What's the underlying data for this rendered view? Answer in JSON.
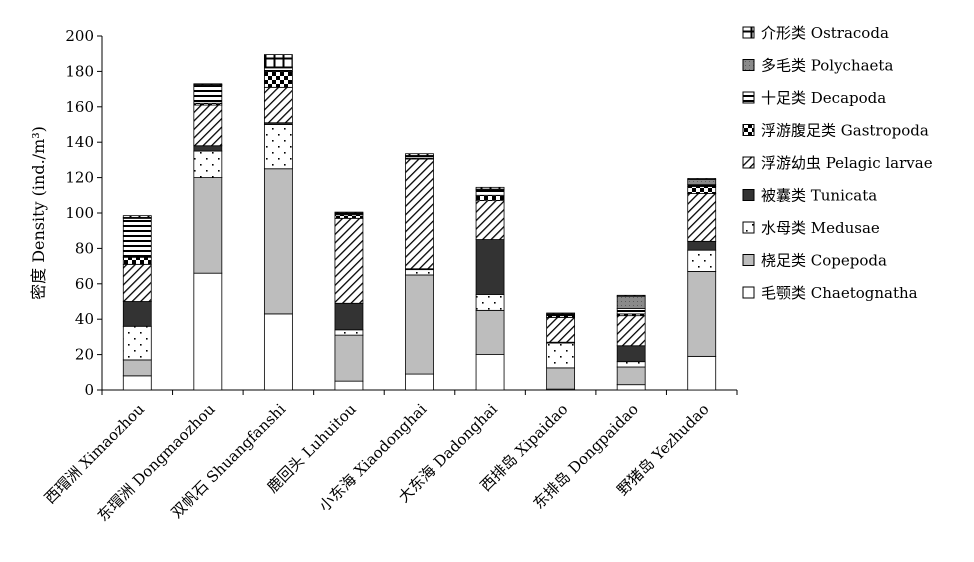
{
  "chart_data": {
    "type": "bar",
    "stacked": true,
    "title": "",
    "xlabel": "",
    "ylabel": "密度 Density (ind./m³)",
    "ylim": [
      0,
      200
    ],
    "yticks": [
      0,
      20,
      40,
      60,
      80,
      100,
      120,
      140,
      160,
      180,
      200
    ],
    "grid": false,
    "legend_position": "right",
    "categories": [
      "西瑁洲 Ximaozhou",
      "东瑁洲 Dongmaozhou",
      "双帆石 Shuangfanshi",
      "鹿回头 Luhuitou",
      "小东海 Xiaodonghai",
      "大东海 Dadonghai",
      "西排岛 Xipaidao",
      "东排岛 Dongpaidao",
      "野猪岛 Yezhudao"
    ],
    "series": [
      {
        "name": "毛颚类 Chaetognatha",
        "pattern": "white",
        "values": [
          8,
          66,
          43,
          5,
          9,
          20,
          0.5,
          3,
          19
        ]
      },
      {
        "name": "桡足类 Copepoda",
        "pattern": "gray",
        "values": [
          9,
          54,
          82,
          26,
          56,
          25,
          12,
          10,
          48
        ]
      },
      {
        "name": "水母类 Medusae",
        "pattern": "dots",
        "values": [
          19,
          15,
          25,
          3,
          3,
          9,
          14,
          3,
          12
        ]
      },
      {
        "name": "被囊类 Tunicata",
        "pattern": "black",
        "values": [
          14,
          3,
          1,
          15,
          0.5,
          31,
          0.5,
          9,
          5
        ]
      },
      {
        "name": "浮游幼虫 Pelagic larvae",
        "pattern": "hatch",
        "values": [
          21,
          23,
          20,
          48,
          62,
          22,
          14,
          17,
          27
        ]
      },
      {
        "name": "浮游腹足类 Gastropoda",
        "pattern": "checker",
        "values": [
          4,
          1,
          9,
          2,
          0.5,
          3,
          1,
          1,
          4
        ]
      },
      {
        "name": "十足类 Decapoda",
        "pattern": "hlines",
        "values": [
          22,
          10,
          2,
          0.5,
          1,
          3,
          0.5,
          3,
          1
        ]
      },
      {
        "name": "多毛类 Polychaeta",
        "pattern": "darkgray",
        "values": [
          0.5,
          0.5,
          0.5,
          0.5,
          0.5,
          0.5,
          0.5,
          7,
          3
        ]
      },
      {
        "name": "介形类 Ostracoda",
        "pattern": "cross",
        "values": [
          1,
          0.5,
          7,
          0.5,
          1,
          1,
          0.5,
          0.5,
          0.5
        ]
      }
    ]
  }
}
